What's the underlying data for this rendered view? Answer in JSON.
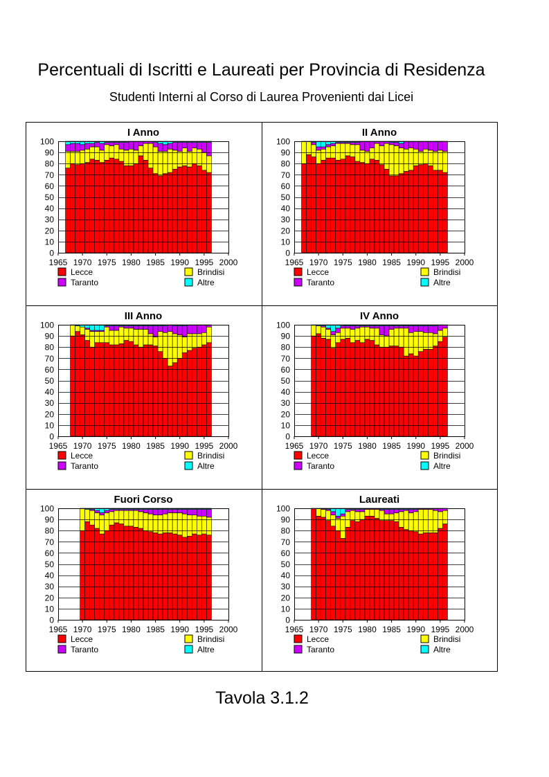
{
  "page": {
    "title": "Percentuali di Iscritti e Laureati per Provincia di Residenza",
    "subtitle": "Studenti Interni al Corso di Laurea Provenienti dai Licei",
    "caption": "Tavola 3.1.2"
  },
  "colors": {
    "Lecce": "#ff0000",
    "Brindisi": "#ffff00",
    "Taranto": "#cc00ff",
    "Altre": "#00ffff",
    "outline": "#000000",
    "grid": "#000000"
  },
  "chart_data": [
    {
      "type": "bar",
      "stacked": true,
      "title": "I Anno",
      "xlim": [
        1965,
        2000
      ],
      "ylim": [
        0,
        100
      ],
      "xticks": [
        1965,
        1970,
        1975,
        1980,
        1985,
        1990,
        1995,
        2000
      ],
      "yticks": [
        0,
        10,
        20,
        30,
        40,
        50,
        60,
        70,
        80,
        90,
        100
      ],
      "grid": true,
      "legend_position": "bottom",
      "legend": [
        "Lecce",
        "Brindisi",
        "Taranto",
        "Altre"
      ],
      "x": [
        1967,
        1968,
        1969,
        1970,
        1971,
        1972,
        1973,
        1974,
        1975,
        1976,
        1977,
        1978,
        1979,
        1980,
        1981,
        1982,
        1983,
        1984,
        1985,
        1986,
        1987,
        1988,
        1989,
        1990,
        1991,
        1992,
        1993,
        1994,
        1995,
        1996
      ],
      "series": [
        {
          "name": "Lecce",
          "values": [
            76,
            80,
            79,
            80,
            81,
            84,
            83,
            81,
            83,
            85,
            84,
            82,
            78,
            78,
            80,
            87,
            83,
            76,
            71,
            69,
            71,
            72,
            75,
            77,
            78,
            77,
            80,
            78,
            74,
            72
          ]
        },
        {
          "name": "Brindisi",
          "values": [
            15,
            11,
            12,
            12,
            12,
            11,
            12,
            11,
            14,
            11,
            13,
            11,
            14,
            15,
            12,
            9,
            15,
            22,
            24,
            22,
            20,
            21,
            17,
            14,
            16,
            14,
            14,
            15,
            16,
            15
          ]
        },
        {
          "name": "Taranto",
          "values": [
            6,
            7,
            7,
            5,
            5,
            3,
            4,
            6,
            2,
            3,
            2,
            6,
            7,
            7,
            8,
            4,
            2,
            2,
            4,
            7,
            6,
            5,
            7,
            8,
            5,
            8,
            5,
            6,
            9,
            12
          ]
        },
        {
          "name": "Altre",
          "values": [
            3,
            2,
            2,
            3,
            2,
            2,
            1,
            2,
            1,
            1,
            1,
            1,
            1,
            0,
            0,
            0,
            0,
            0,
            1,
            2,
            3,
            2,
            1,
            1,
            1,
            1,
            1,
            1,
            1,
            1
          ]
        }
      ]
    },
    {
      "type": "bar",
      "stacked": true,
      "title": "II Anno",
      "xlim": [
        1965,
        2000
      ],
      "ylim": [
        0,
        100
      ],
      "xticks": [
        1965,
        1970,
        1975,
        1980,
        1985,
        1990,
        1995,
        2000
      ],
      "yticks": [
        0,
        10,
        20,
        30,
        40,
        50,
        60,
        70,
        80,
        90,
        100
      ],
      "grid": true,
      "legend_position": "bottom",
      "legend": [
        "Lecce",
        "Brindisi",
        "Taranto",
        "Altre"
      ],
      "x": [
        1967,
        1968,
        1969,
        1970,
        1971,
        1972,
        1973,
        1974,
        1975,
        1976,
        1977,
        1978,
        1979,
        1980,
        1981,
        1982,
        1983,
        1984,
        1985,
        1986,
        1987,
        1988,
        1989,
        1990,
        1991,
        1992,
        1993,
        1994,
        1995,
        1996
      ],
      "series": [
        {
          "name": "Lecce",
          "values": [
            80,
            88,
            86,
            80,
            83,
            85,
            85,
            83,
            84,
            87,
            86,
            82,
            81,
            80,
            84,
            83,
            79,
            75,
            69,
            69,
            71,
            73,
            74,
            78,
            79,
            80,
            78,
            74,
            74,
            72
          ]
        },
        {
          "name": "Brindisi",
          "values": [
            20,
            12,
            11,
            12,
            10,
            10,
            11,
            15,
            14,
            11,
            11,
            15,
            11,
            11,
            10,
            15,
            17,
            23,
            28,
            27,
            23,
            20,
            20,
            15,
            12,
            13,
            14,
            17,
            18,
            19
          ]
        },
        {
          "name": "Taranto",
          "values": [
            0,
            0,
            2,
            3,
            2,
            2,
            2,
            1,
            1,
            1,
            2,
            2,
            8,
            9,
            6,
            2,
            4,
            2,
            2,
            3,
            4,
            7,
            6,
            7,
            9,
            7,
            8,
            9,
            8,
            9
          ]
        },
        {
          "name": "Altre",
          "values": [
            0,
            0,
            1,
            5,
            5,
            3,
            2,
            1,
            1,
            1,
            1,
            1,
            0,
            0,
            0,
            0,
            0,
            0,
            1,
            1,
            2,
            0,
            0,
            0,
            0,
            0,
            0,
            0,
            0,
            0
          ]
        }
      ]
    },
    {
      "type": "bar",
      "stacked": true,
      "title": "III Anno",
      "xlim": [
        1965,
        2000
      ],
      "ylim": [
        0,
        100
      ],
      "xticks": [
        1965,
        1970,
        1975,
        1980,
        1985,
        1990,
        1995,
        2000
      ],
      "yticks": [
        0,
        10,
        20,
        30,
        40,
        50,
        60,
        70,
        80,
        90,
        100
      ],
      "grid": true,
      "legend_position": "bottom",
      "legend": [
        "Lecce",
        "Brindisi",
        "Taranto",
        "Altre"
      ],
      "x": [
        1968,
        1969,
        1970,
        1971,
        1972,
        1973,
        1974,
        1975,
        1976,
        1977,
        1978,
        1979,
        1980,
        1981,
        1982,
        1983,
        1984,
        1985,
        1986,
        1987,
        1988,
        1989,
        1990,
        1991,
        1992,
        1993,
        1994,
        1995,
        1996
      ],
      "series": [
        {
          "name": "Lecce",
          "values": [
            90,
            94,
            91,
            86,
            80,
            84,
            84,
            84,
            82,
            82,
            83,
            86,
            85,
            82,
            80,
            82,
            82,
            81,
            76,
            70,
            63,
            66,
            70,
            75,
            77,
            79,
            80,
            82,
            84
          ]
        },
        {
          "name": "Brindisi",
          "values": [
            10,
            5,
            7,
            10,
            14,
            10,
            10,
            14,
            13,
            13,
            15,
            11,
            12,
            14,
            16,
            14,
            10,
            8,
            18,
            23,
            31,
            26,
            21,
            14,
            15,
            13,
            12,
            11,
            14
          ]
        },
        {
          "name": "Taranto",
          "values": [
            0,
            0,
            0,
            1,
            1,
            1,
            1,
            1,
            4,
            4,
            1,
            2,
            2,
            3,
            3,
            3,
            7,
            10,
            5,
            6,
            6,
            7,
            8,
            10,
            8,
            8,
            8,
            7,
            2
          ]
        },
        {
          "name": "Altre",
          "values": [
            0,
            1,
            2,
            3,
            5,
            5,
            5,
            1,
            1,
            1,
            1,
            1,
            1,
            1,
            1,
            1,
            1,
            1,
            1,
            1,
            0,
            1,
            1,
            1,
            0,
            0,
            0,
            0,
            0
          ]
        }
      ]
    },
    {
      "type": "bar",
      "stacked": true,
      "title": "IV Anno",
      "xlim": [
        1965,
        2000
      ],
      "ylim": [
        0,
        100
      ],
      "xticks": [
        1965,
        1970,
        1975,
        1980,
        1985,
        1990,
        1995,
        2000
      ],
      "yticks": [
        0,
        10,
        20,
        30,
        40,
        50,
        60,
        70,
        80,
        90,
        100
      ],
      "grid": true,
      "legend_position": "bottom",
      "legend": [
        "Lecce",
        "Brindisi",
        "Taranto",
        "Altre"
      ],
      "x": [
        1969,
        1970,
        1971,
        1972,
        1973,
        1974,
        1975,
        1976,
        1977,
        1978,
        1979,
        1980,
        1981,
        1982,
        1983,
        1984,
        1985,
        1986,
        1987,
        1988,
        1989,
        1990,
        1991,
        1992,
        1993,
        1994,
        1995,
        1996
      ],
      "series": [
        {
          "name": "Lecce",
          "values": [
            90,
            92,
            88,
            87,
            79,
            84,
            87,
            88,
            84,
            86,
            84,
            87,
            86,
            82,
            80,
            80,
            81,
            81,
            80,
            72,
            74,
            72,
            76,
            78,
            78,
            81,
            85,
            89
          ]
        },
        {
          "name": "Brindisi",
          "values": [
            10,
            7,
            10,
            9,
            12,
            9,
            10,
            9,
            12,
            11,
            14,
            11,
            11,
            15,
            11,
            10,
            15,
            16,
            17,
            25,
            19,
            22,
            18,
            15,
            15,
            11,
            10,
            8
          ]
        },
        {
          "name": "Taranto",
          "values": [
            0,
            0,
            1,
            1,
            3,
            4,
            2,
            2,
            3,
            2,
            1,
            1,
            2,
            2,
            8,
            9,
            3,
            2,
            2,
            2,
            6,
            5,
            5,
            6,
            6,
            7,
            5,
            3
          ]
        },
        {
          "name": "Altre",
          "values": [
            0,
            1,
            1,
            3,
            6,
            3,
            1,
            1,
            1,
            1,
            1,
            1,
            1,
            1,
            1,
            1,
            1,
            1,
            1,
            1,
            1,
            1,
            1,
            1,
            1,
            1,
            0,
            0
          ]
        }
      ]
    },
    {
      "type": "bar",
      "stacked": true,
      "title": "Fuori Corso",
      "xlim": [
        1965,
        2000
      ],
      "ylim": [
        0,
        100
      ],
      "xticks": [
        1965,
        1970,
        1975,
        1980,
        1985,
        1990,
        1995,
        2000
      ],
      "yticks": [
        0,
        10,
        20,
        30,
        40,
        50,
        60,
        70,
        80,
        90,
        100
      ],
      "grid": true,
      "legend_position": "bottom",
      "legend": [
        "Lecce",
        "Brindisi",
        "Taranto",
        "Altre"
      ],
      "x": [
        1970,
        1971,
        1972,
        1973,
        1974,
        1975,
        1976,
        1977,
        1978,
        1979,
        1980,
        1981,
        1982,
        1983,
        1984,
        1985,
        1986,
        1987,
        1988,
        1989,
        1990,
        1991,
        1992,
        1993,
        1994,
        1995,
        1996
      ],
      "series": [
        {
          "name": "Lecce",
          "values": [
            80,
            88,
            85,
            82,
            77,
            80,
            85,
            87,
            86,
            84,
            84,
            83,
            82,
            80,
            79,
            78,
            77,
            78,
            78,
            77,
            76,
            74,
            75,
            77,
            76,
            77,
            76
          ]
        },
        {
          "name": "Brindisi",
          "values": [
            20,
            11,
            13,
            14,
            17,
            16,
            12,
            11,
            12,
            14,
            14,
            15,
            15,
            16,
            16,
            16,
            17,
            17,
            18,
            19,
            20,
            21,
            19,
            17,
            17,
            16,
            16
          ]
        },
        {
          "name": "Taranto",
          "values": [
            0,
            0,
            1,
            2,
            2,
            2,
            2,
            1,
            1,
            1,
            1,
            1,
            2,
            3,
            4,
            5,
            5,
            4,
            3,
            3,
            3,
            4,
            5,
            5,
            6,
            6,
            7
          ]
        },
        {
          "name": "Altre",
          "values": [
            0,
            1,
            1,
            2,
            4,
            2,
            1,
            1,
            1,
            1,
            1,
            1,
            1,
            1,
            1,
            1,
            1,
            1,
            1,
            1,
            1,
            1,
            1,
            1,
            1,
            1,
            1
          ]
        }
      ]
    },
    {
      "type": "bar",
      "stacked": true,
      "title": "Laureati",
      "xlim": [
        1965,
        2000
      ],
      "ylim": [
        0,
        100
      ],
      "xticks": [
        1965,
        1970,
        1975,
        1980,
        1985,
        1990,
        1995,
        2000
      ],
      "yticks": [
        0,
        10,
        20,
        30,
        40,
        50,
        60,
        70,
        80,
        90,
        100
      ],
      "grid": true,
      "legend_position": "bottom",
      "legend": [
        "Lecce",
        "Brindisi",
        "Taranto",
        "Altre"
      ],
      "x": [
        1969,
        1970,
        1971,
        1972,
        1973,
        1974,
        1975,
        1976,
        1977,
        1978,
        1979,
        1980,
        1981,
        1982,
        1983,
        1984,
        1985,
        1986,
        1987,
        1988,
        1989,
        1990,
        1991,
        1992,
        1993,
        1994,
        1995,
        1996
      ],
      "series": [
        {
          "name": "Lecce",
          "values": [
            100,
            93,
            92,
            89,
            84,
            80,
            73,
            83,
            89,
            88,
            90,
            93,
            93,
            91,
            89,
            89,
            89,
            88,
            83,
            81,
            80,
            79,
            77,
            78,
            78,
            78,
            82,
            86
          ]
        },
        {
          "name": "Brindisi",
          "values": [
            0,
            7,
            7,
            9,
            10,
            11,
            20,
            14,
            9,
            9,
            7,
            6,
            6,
            8,
            9,
            6,
            6,
            8,
            14,
            17,
            16,
            18,
            22,
            21,
            21,
            20,
            15,
            12
          ]
        },
        {
          "name": "Taranto",
          "values": [
            0,
            0,
            1,
            1,
            3,
            2,
            2,
            2,
            1,
            2,
            2,
            1,
            1,
            1,
            1,
            4,
            4,
            3,
            2,
            1,
            3,
            2,
            1,
            1,
            1,
            2,
            3,
            2
          ]
        },
        {
          "name": "Altre",
          "values": [
            0,
            0,
            0,
            1,
            3,
            7,
            5,
            1,
            1,
            1,
            1,
            0,
            0,
            0,
            1,
            1,
            1,
            1,
            1,
            1,
            1,
            1,
            0,
            0,
            0,
            0,
            0,
            0
          ]
        }
      ]
    }
  ]
}
